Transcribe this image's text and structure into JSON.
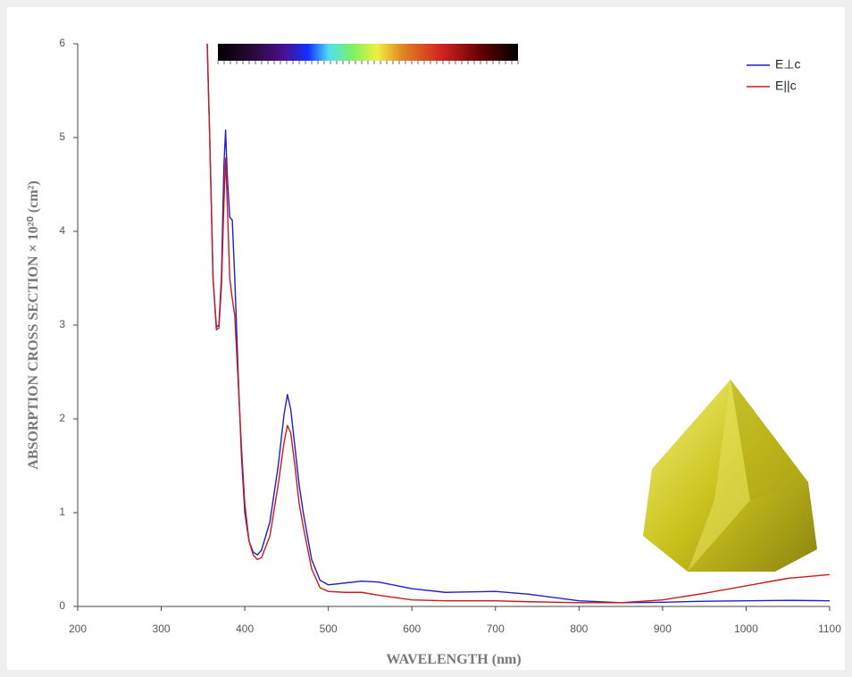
{
  "chart_data": {
    "type": "line",
    "xlabel": "WAVELENGTH (nm)",
    "ylabel": "ABSORPTION CROSS SECTION × 10²⁰ (cm²)",
    "x": [
      355,
      358,
      362,
      366,
      369,
      372,
      375,
      377,
      379,
      382,
      385,
      388,
      392,
      396,
      400,
      405,
      410,
      415,
      420,
      430,
      440,
      447,
      451,
      455,
      460,
      465,
      470,
      480,
      490,
      500,
      520,
      540,
      560,
      600,
      640,
      700,
      740,
      800,
      850,
      900,
      950,
      1000,
      1050,
      1100
    ],
    "series": [
      {
        "name": "E⊥c",
        "color": "#1f1fd0",
        "values": [
          6.0,
          5.0,
          3.5,
          2.98,
          3.0,
          3.5,
          4.7,
          5.08,
          4.6,
          4.15,
          4.12,
          3.5,
          2.5,
          1.6,
          1.0,
          0.7,
          0.58,
          0.55,
          0.6,
          0.9,
          1.5,
          2.05,
          2.26,
          2.1,
          1.7,
          1.3,
          1.0,
          0.5,
          0.28,
          0.23,
          0.25,
          0.27,
          0.26,
          0.19,
          0.15,
          0.16,
          0.13,
          0.06,
          0.04,
          0.045,
          0.055,
          0.06,
          0.065,
          0.06
        ]
      },
      {
        "name": "E||c",
        "color": "#cc1a1a",
        "values": [
          6.0,
          5.0,
          3.5,
          2.95,
          2.97,
          3.4,
          4.3,
          4.78,
          4.3,
          3.5,
          3.28,
          3.1,
          2.4,
          1.7,
          1.1,
          0.7,
          0.55,
          0.5,
          0.52,
          0.75,
          1.3,
          1.75,
          1.93,
          1.85,
          1.5,
          1.1,
          0.85,
          0.4,
          0.2,
          0.16,
          0.15,
          0.15,
          0.12,
          0.07,
          0.06,
          0.06,
          0.05,
          0.04,
          0.04,
          0.07,
          0.14,
          0.22,
          0.3,
          0.34
        ]
      }
    ],
    "xlim": [
      200,
      1100
    ],
    "xticks": [
      200,
      300,
      400,
      500,
      600,
      700,
      800,
      900,
      1000,
      1100
    ],
    "ylim": [
      0,
      6
    ],
    "yticks": [
      0,
      1,
      2,
      3,
      4,
      5,
      6
    ],
    "legend": "upper right"
  }
}
